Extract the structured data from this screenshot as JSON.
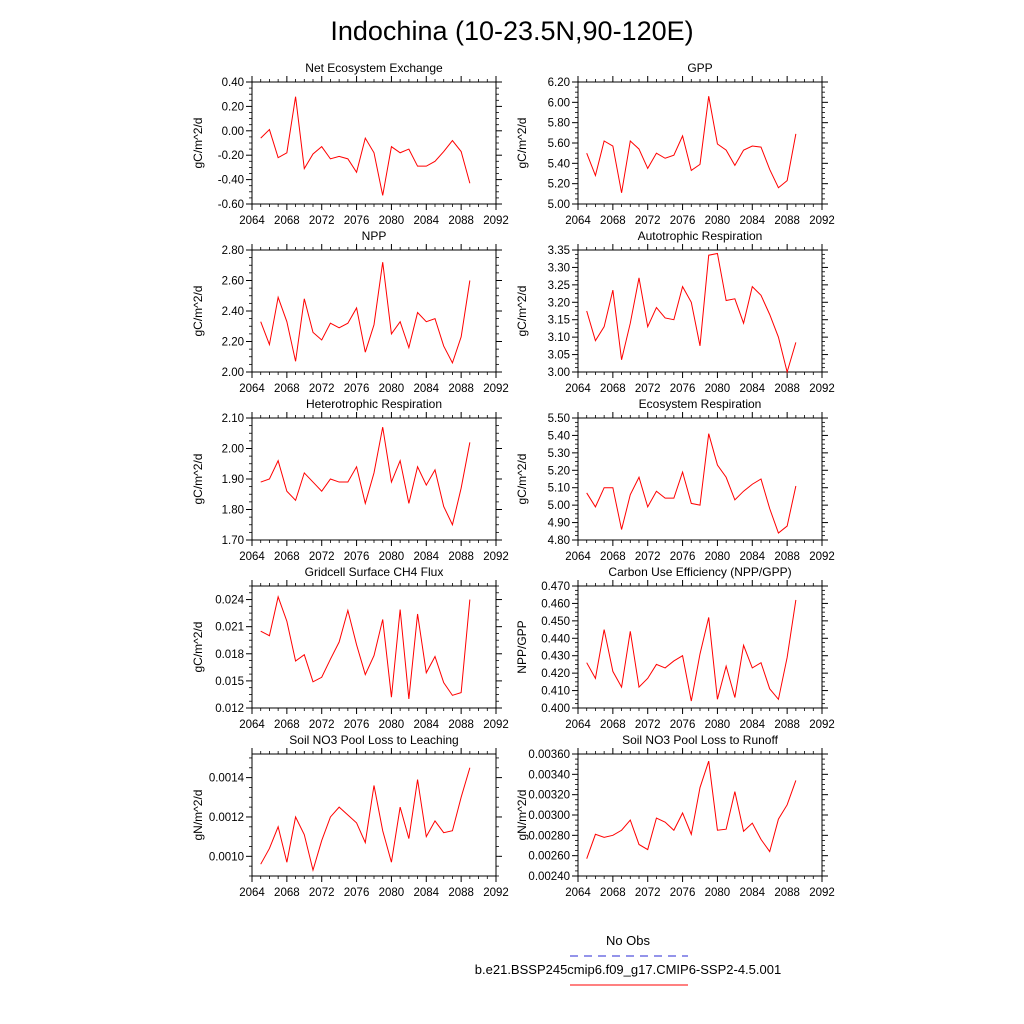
{
  "figure_title": "Indochina (10-23.5N,90-120E)",
  "legend": {
    "obs_label": "No Obs",
    "obs_color": "#5555dd",
    "model_label": "b.e21.BSSP245cmip6.f09_g17.CMIP6-SSP2-4.5.001",
    "model_color": "#ff0000"
  },
  "x": [
    2065,
    2066,
    2067,
    2068,
    2069,
    2070,
    2071,
    2072,
    2073,
    2074,
    2075,
    2076,
    2077,
    2078,
    2079,
    2080,
    2081,
    2082,
    2083,
    2084,
    2085,
    2086,
    2087,
    2088,
    2089
  ],
  "xticks": [
    2064,
    2068,
    2072,
    2076,
    2080,
    2084,
    2088,
    2092
  ],
  "xlim": [
    2064,
    2092
  ],
  "chart_data": [
    {
      "type": "line",
      "title": "Net Ecosystem Exchange",
      "ylabel": "gC/m^2/d",
      "ylim": [
        -0.6,
        0.4
      ],
      "yticks": [
        "-0.60",
        "-0.40",
        "-0.20",
        "0.00",
        "0.20",
        "0.40"
      ],
      "ytick_values": [
        -0.6,
        -0.4,
        -0.2,
        0.0,
        0.2,
        0.4
      ],
      "values": [
        -0.06,
        0.01,
        -0.22,
        -0.18,
        0.28,
        -0.31,
        -0.19,
        -0.13,
        -0.23,
        -0.21,
        -0.23,
        -0.34,
        -0.06,
        -0.18,
        -0.53,
        -0.13,
        -0.18,
        -0.15,
        -0.29,
        -0.29,
        -0.25,
        -0.17,
        -0.08,
        -0.17,
        -0.43
      ]
    },
    {
      "type": "line",
      "title": "GPP",
      "ylabel": "gC/m^2/d",
      "ylim": [
        5.0,
        6.2
      ],
      "yticks": [
        "5.00",
        "5.20",
        "5.40",
        "5.60",
        "5.80",
        "6.00",
        "6.20"
      ],
      "ytick_values": [
        5.0,
        5.2,
        5.4,
        5.6,
        5.8,
        6.0,
        6.2
      ],
      "values": [
        5.5,
        5.28,
        5.62,
        5.57,
        5.11,
        5.62,
        5.54,
        5.35,
        5.5,
        5.45,
        5.48,
        5.67,
        5.33,
        5.39,
        6.06,
        5.59,
        5.53,
        5.38,
        5.53,
        5.57,
        5.56,
        5.34,
        5.16,
        5.23,
        5.69
      ]
    },
    {
      "type": "line",
      "title": "NPP",
      "ylabel": "gC/m^2/d",
      "ylim": [
        2.0,
        2.8
      ],
      "yticks": [
        "2.00",
        "2.20",
        "2.40",
        "2.60",
        "2.80"
      ],
      "ytick_values": [
        2.0,
        2.2,
        2.4,
        2.6,
        2.8
      ],
      "values": [
        2.33,
        2.18,
        2.49,
        2.33,
        2.07,
        2.48,
        2.26,
        2.21,
        2.32,
        2.29,
        2.32,
        2.42,
        2.13,
        2.31,
        2.72,
        2.25,
        2.33,
        2.16,
        2.39,
        2.33,
        2.35,
        2.17,
        2.06,
        2.23,
        2.6
      ]
    },
    {
      "type": "line",
      "title": "Autotrophic Respiration",
      "ylabel": "gC/m^2/d",
      "ylim": [
        3.0,
        3.35
      ],
      "yticks": [
        "3.00",
        "3.05",
        "3.10",
        "3.15",
        "3.20",
        "3.25",
        "3.30",
        "3.35"
      ],
      "ytick_values": [
        3.0,
        3.05,
        3.1,
        3.15,
        3.2,
        3.25,
        3.3,
        3.35
      ],
      "values": [
        3.175,
        3.09,
        3.13,
        3.235,
        3.035,
        3.14,
        3.27,
        3.13,
        3.185,
        3.155,
        3.15,
        3.245,
        3.2,
        3.075,
        3.335,
        3.34,
        3.205,
        3.21,
        3.14,
        3.245,
        3.22,
        3.165,
        3.1,
        3.0,
        3.085
      ]
    },
    {
      "type": "line",
      "title": "Heterotrophic Respiration",
      "ylabel": "gC/m^2/d",
      "ylim": [
        1.7,
        2.1
      ],
      "yticks": [
        "1.70",
        "1.80",
        "1.90",
        "2.00",
        "2.10"
      ],
      "ytick_values": [
        1.7,
        1.8,
        1.9,
        2.0,
        2.1
      ],
      "values": [
        1.89,
        1.9,
        1.96,
        1.86,
        1.83,
        1.92,
        1.89,
        1.86,
        1.9,
        1.89,
        1.89,
        1.94,
        1.82,
        1.92,
        2.07,
        1.89,
        1.96,
        1.82,
        1.94,
        1.88,
        1.93,
        1.81,
        1.75,
        1.87,
        2.02
      ]
    },
    {
      "type": "line",
      "title": "Ecosystem Respiration",
      "ylabel": "gC/m^2/d",
      "ylim": [
        4.8,
        5.5
      ],
      "yticks": [
        "4.80",
        "4.90",
        "5.00",
        "5.10",
        "5.20",
        "5.30",
        "5.40",
        "5.50"
      ],
      "ytick_values": [
        4.8,
        4.9,
        5.0,
        5.1,
        5.2,
        5.3,
        5.4,
        5.5
      ],
      "values": [
        5.07,
        4.99,
        5.1,
        5.1,
        4.86,
        5.06,
        5.16,
        4.99,
        5.08,
        5.04,
        5.04,
        5.19,
        5.01,
        5.0,
        5.41,
        5.23,
        5.16,
        5.03,
        5.08,
        5.12,
        5.15,
        4.98,
        4.84,
        4.88,
        5.11
      ]
    },
    {
      "type": "line",
      "title": "Gridcell Surface CH4 Flux",
      "ylabel": "gC/m^2/d",
      "ylim": [
        0.012,
        0.0255
      ],
      "yticks": [
        "0.012",
        "0.015",
        "0.018",
        "0.021",
        "0.024"
      ],
      "ytick_values": [
        0.012,
        0.015,
        0.018,
        0.021,
        0.024
      ],
      "values": [
        0.0205,
        0.02,
        0.0243,
        0.0216,
        0.0172,
        0.0179,
        0.0149,
        0.0154,
        0.0174,
        0.0193,
        0.0228,
        0.019,
        0.0157,
        0.0178,
        0.0218,
        0.0132,
        0.0229,
        0.013,
        0.0224,
        0.0159,
        0.0177,
        0.0148,
        0.0134,
        0.0137,
        0.024
      ]
    },
    {
      "type": "line",
      "title": "Carbon Use Efficiency (NPP/GPP)",
      "ylabel": "NPP/GPP",
      "ylim": [
        0.4,
        0.47
      ],
      "yticks": [
        "0.400",
        "0.410",
        "0.420",
        "0.430",
        "0.440",
        "0.450",
        "0.460",
        "0.470"
      ],
      "ytick_values": [
        0.4,
        0.41,
        0.42,
        0.43,
        0.44,
        0.45,
        0.46,
        0.47
      ],
      "values": [
        0.426,
        0.417,
        0.445,
        0.421,
        0.412,
        0.444,
        0.412,
        0.417,
        0.425,
        0.423,
        0.427,
        0.43,
        0.404,
        0.431,
        0.452,
        0.405,
        0.424,
        0.406,
        0.436,
        0.423,
        0.426,
        0.411,
        0.405,
        0.429,
        0.462
      ]
    },
    {
      "type": "line",
      "title": "Soil NO3 Pool Loss to Leaching",
      "ylabel": "gN/m^2/d",
      "ylim": [
        0.0009,
        0.00152
      ],
      "yticks": [
        "0.0010",
        "0.0012",
        "0.0014"
      ],
      "ytick_values": [
        0.001,
        0.0012,
        0.0014
      ],
      "values": [
        0.00096,
        0.00104,
        0.00115,
        0.00097,
        0.0012,
        0.00111,
        0.00093,
        0.00108,
        0.0012,
        0.00125,
        0.00121,
        0.00117,
        0.00107,
        0.00136,
        0.00113,
        0.00097,
        0.00125,
        0.00109,
        0.00139,
        0.0011,
        0.00118,
        0.00112,
        0.00113,
        0.0013,
        0.00145
      ]
    },
    {
      "type": "line",
      "title": "Soil NO3 Pool Loss to Runoff",
      "ylabel": "gN/m^2/d",
      "ylim": [
        0.0024,
        0.0036
      ],
      "yticks": [
        "0.00240",
        "0.00260",
        "0.00280",
        "0.00300",
        "0.00320",
        "0.00340",
        "0.00360"
      ],
      "ytick_values": [
        0.0024,
        0.0026,
        0.0028,
        0.003,
        0.0032,
        0.0034,
        0.0036
      ],
      "values": [
        0.00257,
        0.00281,
        0.00278,
        0.0028,
        0.00285,
        0.00295,
        0.00271,
        0.00266,
        0.00297,
        0.00293,
        0.00285,
        0.00302,
        0.00281,
        0.00327,
        0.00353,
        0.00285,
        0.00286,
        0.00323,
        0.00284,
        0.00292,
        0.00276,
        0.00264,
        0.00296,
        0.0031,
        0.00334
      ]
    }
  ]
}
